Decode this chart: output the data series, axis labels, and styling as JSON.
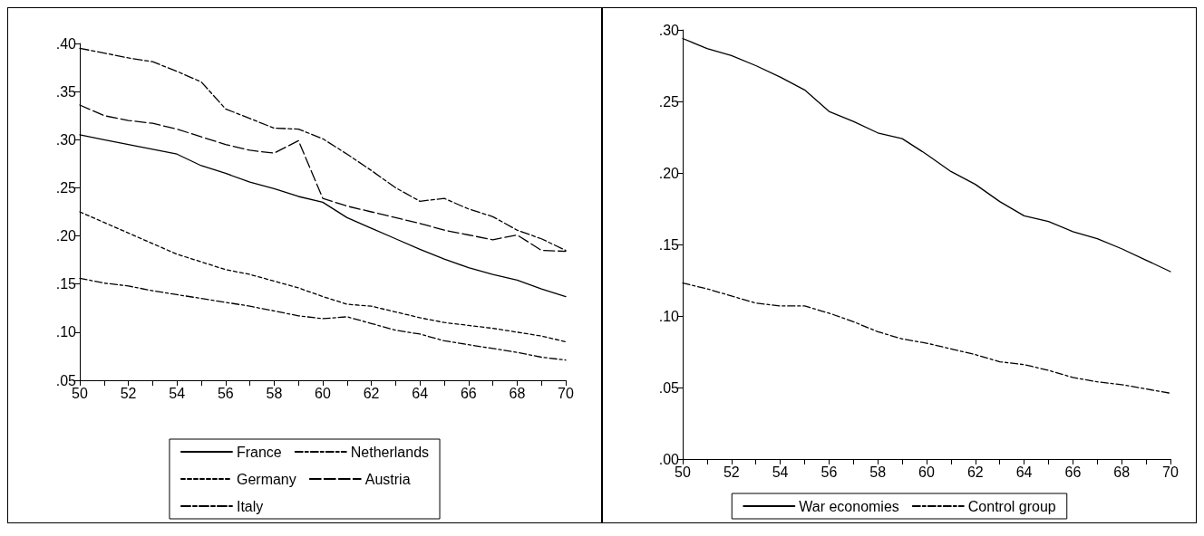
{
  "chart_data": [
    {
      "type": "line",
      "legend": "bottom",
      "grid": false,
      "marker": "none",
      "xlim": [
        50,
        70
      ],
      "xticks": [
        50,
        {
          "value": 51,
          "label": null
        },
        52,
        {
          "value": 53,
          "label": null
        },
        54,
        {
          "value": 55,
          "label": null
        },
        56,
        {
          "value": 57,
          "label": null
        },
        58,
        {
          "value": 59,
          "label": null
        },
        60,
        {
          "value": 61,
          "label": null
        },
        62,
        {
          "value": 63,
          "label": null
        },
        64,
        {
          "value": 65,
          "label": null
        },
        66,
        {
          "value": 67,
          "label": null
        },
        68,
        {
          "value": 69,
          "label": null
        },
        70
      ],
      "ylim": [
        0.05,
        0.4
      ],
      "yticks": [
        {
          "value": 0.05,
          "label": ".05"
        },
        {
          "value": 0.1,
          "label": ".10"
        },
        {
          "value": 0.15,
          "label": ".15"
        },
        {
          "value": 0.2,
          "label": ".20"
        },
        {
          "value": 0.25,
          "label": ".25"
        },
        {
          "value": 0.3,
          "label": ".30"
        },
        {
          "value": 0.35,
          "label": ".35"
        },
        {
          "value": 0.4,
          "label": ".40"
        }
      ],
      "x": [
        50,
        51,
        52,
        53,
        54,
        55,
        56,
        57,
        58,
        59,
        60,
        61,
        62,
        63,
        64,
        65,
        66,
        67,
        68,
        69,
        70
      ],
      "series": [
        {
          "name": "France",
          "color": "#000000",
          "line_style": "solid",
          "values": [
            0.305,
            0.3,
            0.295,
            0.29,
            0.285,
            0.273,
            0.265,
            0.256,
            0.249,
            0.241,
            0.235,
            0.219,
            0.208,
            0.197,
            0.186,
            0.176,
            0.167,
            0.16,
            0.154,
            0.145,
            0.137
          ]
        },
        {
          "name": "Netherlands",
          "color": "#000000",
          "line_style": "dashed",
          "values": [
            0.156,
            0.151,
            0.148,
            0.143,
            0.139,
            0.135,
            0.131,
            0.127,
            0.122,
            0.117,
            0.114,
            0.116,
            0.109,
            0.102,
            0.098,
            0.091,
            0.087,
            0.083,
            0.079,
            0.074,
            0.071
          ]
        },
        {
          "name": "Germany",
          "color": "#000000",
          "line_style": "dashed",
          "values": [
            0.225,
            0.214,
            0.203,
            0.192,
            0.181,
            0.173,
            0.165,
            0.16,
            0.153,
            0.146,
            0.137,
            0.129,
            0.127,
            0.121,
            0.115,
            0.11,
            0.107,
            0.104,
            0.1,
            0.096,
            0.09
          ]
        },
        {
          "name": "Austria",
          "color": "#000000",
          "line_style": "dashed",
          "values": [
            0.336,
            0.325,
            0.32,
            0.317,
            0.311,
            0.303,
            0.295,
            0.289,
            0.286,
            0.299,
            0.239,
            0.231,
            0.225,
            0.219,
            0.213,
            0.206,
            0.201,
            0.196,
            0.201,
            0.185,
            0.184
          ]
        },
        {
          "name": "Italy",
          "color": "#000000",
          "line_style": "dashed",
          "values": [
            0.395,
            0.39,
            0.385,
            0.381,
            0.371,
            0.36,
            0.332,
            0.322,
            0.312,
            0.311,
            0.301,
            0.285,
            0.268,
            0.25,
            0.236,
            0.239,
            0.228,
            0.22,
            0.206,
            0.197,
            0.185
          ]
        }
      ]
    },
    {
      "type": "line",
      "legend": "bottom",
      "grid": false,
      "marker": "none",
      "xlim": [
        50,
        70
      ],
      "xticks": [
        50,
        {
          "value": 51,
          "label": null
        },
        52,
        {
          "value": 53,
          "label": null
        },
        54,
        {
          "value": 55,
          "label": null
        },
        56,
        {
          "value": 57,
          "label": null
        },
        58,
        {
          "value": 59,
          "label": null
        },
        60,
        {
          "value": 61,
          "label": null
        },
        62,
        {
          "value": 63,
          "label": null
        },
        64,
        {
          "value": 65,
          "label": null
        },
        66,
        {
          "value": 67,
          "label": null
        },
        68,
        {
          "value": 69,
          "label": null
        },
        70
      ],
      "ylim": [
        0,
        0.3
      ],
      "yticks": [
        {
          "value": 0,
          "label": ".00"
        },
        {
          "value": 0.05,
          "label": ".05"
        },
        {
          "value": 0.1,
          "label": ".10"
        },
        {
          "value": 0.15,
          "label": ".15"
        },
        {
          "value": 0.2,
          "label": ".20"
        },
        {
          "value": 0.25,
          "label": ".25"
        },
        {
          "value": 0.3,
          "label": ".30"
        }
      ],
      "x": [
        50,
        51,
        52,
        53,
        54,
        55,
        56,
        57,
        58,
        59,
        60,
        61,
        62,
        63,
        64,
        65,
        66,
        67,
        68,
        69,
        70
      ],
      "series": [
        {
          "name": "War economies",
          "color": "#000000",
          "line_style": "solid",
          "values": [
            0.294,
            0.287,
            0.282,
            0.275,
            0.267,
            0.258,
            0.243,
            0.236,
            0.228,
            0.224,
            0.213,
            0.201,
            0.192,
            0.18,
            0.17,
            0.166,
            0.159,
            0.154,
            0.147,
            0.139,
            0.131
          ]
        },
        {
          "name": "Control group",
          "color": "#000000",
          "line_style": "dashed",
          "values": [
            0.123,
            0.119,
            0.114,
            0.109,
            0.107,
            0.107,
            0.102,
            0.096,
            0.089,
            0.084,
            0.081,
            0.077,
            0.073,
            0.068,
            0.066,
            0.062,
            0.057,
            0.054,
            0.052,
            0.049,
            0.046
          ]
        }
      ]
    }
  ]
}
